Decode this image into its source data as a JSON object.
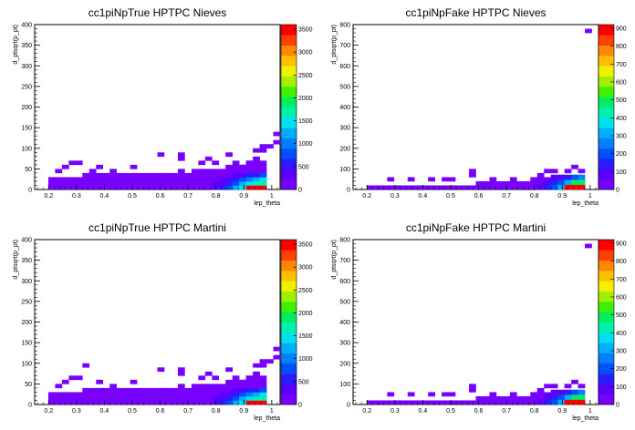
{
  "chart_data": [
    {
      "type": "heatmap",
      "title": "cc1piNpTrue HPTPC Nieves",
      "xlabel": "lep_theta",
      "ylabel": "d_ptsqrt(p_pt)",
      "xlim": [
        0.15,
        1.03
      ],
      "ylim": [
        0,
        400
      ],
      "xticks": [
        "0.2",
        "0.3",
        "0.4",
        "0.5",
        "0.6",
        "0.7",
        "0.8",
        "0.9",
        "1"
      ],
      "xtick_values": [
        0.2,
        0.3,
        0.4,
        0.5,
        0.6,
        0.7,
        0.8,
        0.9,
        1.0
      ],
      "yticks": [
        "0",
        "50",
        "100",
        "150",
        "200",
        "250",
        "300",
        "350",
        "400"
      ],
      "ytick_values": [
        0,
        50,
        100,
        150,
        200,
        250,
        300,
        350,
        400
      ],
      "zticks": [
        "0",
        "500",
        "1000",
        "1500",
        "2000",
        "2500",
        "3000",
        "3500"
      ],
      "zmax": 3600,
      "colorscale": "rainbow",
      "cells": [
        [
          0.5,
          7,
          3500
        ],
        [
          0.5,
          6,
          1600
        ],
        [
          0.5,
          5,
          900
        ],
        [
          0.5,
          4,
          500
        ],
        [
          0.5,
          3,
          200
        ],
        [
          0.5,
          2,
          80
        ],
        [
          0.5,
          1,
          30
        ],
        [
          0.5,
          0,
          10
        ]
      ],
      "envelope": [
        3,
        3,
        3,
        3,
        3,
        4,
        4,
        4,
        4,
        4,
        4,
        4,
        4,
        4,
        4,
        4,
        4,
        4,
        4,
        5,
        4,
        5,
        5,
        5,
        5,
        5,
        6,
        6,
        6,
        7,
        7,
        7
      ],
      "scatter_cells": [
        [
          1,
          4
        ],
        [
          2,
          5
        ],
        [
          3,
          6
        ],
        [
          4,
          6
        ],
        [
          6,
          4
        ],
        [
          7,
          5
        ],
        [
          9,
          4
        ],
        [
          12,
          5
        ],
        [
          16,
          8
        ],
        [
          19,
          7
        ],
        [
          19,
          8
        ],
        [
          22,
          6
        ],
        [
          23,
          7
        ],
        [
          24,
          6
        ],
        [
          26,
          8
        ],
        [
          27,
          6
        ],
        [
          28,
          5
        ],
        [
          29,
          6
        ],
        [
          30,
          7
        ],
        [
          30,
          9
        ],
        [
          31,
          9
        ],
        [
          31,
          10
        ],
        [
          32,
          10
        ],
        [
          33,
          11
        ],
        [
          33,
          13
        ],
        [
          34,
          13
        ],
        [
          34,
          14
        ],
        [
          35,
          18
        ],
        [
          35,
          21
        ]
      ]
    },
    {
      "type": "heatmap",
      "title": "cc1piNpFake HPTPC Nieves",
      "xlabel": "lep_theta",
      "ylabel": "d_ptsqrt(p_pt)",
      "xlim": [
        0.15,
        1.03
      ],
      "ylim": [
        0,
        800
      ],
      "xticks": [
        "0.2",
        "0.3",
        "0.4",
        "0.5",
        "0.6",
        "0.7",
        "0.8",
        "0.9",
        "1"
      ],
      "xtick_values": [
        0.2,
        0.3,
        0.4,
        0.5,
        0.6,
        0.7,
        0.8,
        0.9,
        1.0
      ],
      "yticks": [
        "0",
        "100",
        "200",
        "300",
        "400",
        "500",
        "600",
        "700",
        "800"
      ],
      "ytick_values": [
        0,
        100,
        200,
        300,
        400,
        500,
        600,
        700,
        800
      ],
      "zticks": [
        "0",
        "100",
        "200",
        "300",
        "400",
        "500",
        "600",
        "700",
        "800",
        "900"
      ],
      "zmax": 920,
      "colorscale": "rainbow",
      "cells": [],
      "envelope": [
        1,
        1,
        1,
        1,
        1,
        1,
        1,
        1,
        1,
        1,
        1,
        1,
        1,
        1,
        1,
        1,
        2,
        2,
        2,
        2,
        2,
        2,
        2,
        2,
        3,
        3,
        3,
        3,
        3,
        3,
        3,
        2
      ],
      "scatter_cells": [
        [
          3,
          2
        ],
        [
          6,
          2
        ],
        [
          9,
          2
        ],
        [
          11,
          2
        ],
        [
          12,
          2
        ],
        [
          15,
          3
        ],
        [
          15,
          4
        ],
        [
          18,
          2
        ],
        [
          21,
          2
        ],
        [
          25,
          3
        ],
        [
          26,
          4
        ],
        [
          27,
          4
        ],
        [
          29,
          4
        ],
        [
          30,
          5
        ],
        [
          31,
          4
        ],
        [
          32,
          38
        ]
      ]
    },
    {
      "type": "heatmap",
      "title": "cc1piNpTrue HPTPC Martini",
      "xlabel": "lep_theta",
      "ylabel": "d_ptsqrt(p_pt)",
      "xlim": [
        0.15,
        1.03
      ],
      "ylim": [
        0,
        400
      ],
      "xticks": [
        "0.2",
        "0.3",
        "0.4",
        "0.5",
        "0.6",
        "0.7",
        "0.8",
        "0.9",
        "1"
      ],
      "xtick_values": [
        0.2,
        0.3,
        0.4,
        0.5,
        0.6,
        0.7,
        0.8,
        0.9,
        1.0
      ],
      "yticks": [
        "0",
        "50",
        "100",
        "150",
        "200",
        "250",
        "300",
        "350",
        "400"
      ],
      "ytick_values": [
        0,
        50,
        100,
        150,
        200,
        250,
        300,
        350,
        400
      ],
      "zticks": [
        "0",
        "500",
        "1000",
        "1500",
        "2000",
        "2500",
        "3000",
        "3500"
      ],
      "zmax": 3600,
      "colorscale": "rainbow",
      "cells": [],
      "envelope": [
        3,
        3,
        3,
        3,
        3,
        4,
        4,
        4,
        4,
        4,
        4,
        4,
        4,
        4,
        4,
        4,
        4,
        4,
        4,
        5,
        4,
        5,
        5,
        5,
        5,
        5,
        6,
        6,
        6,
        7,
        7,
        7
      ],
      "scatter_cells": [
        [
          1,
          4
        ],
        [
          2,
          5
        ],
        [
          3,
          6
        ],
        [
          4,
          6
        ],
        [
          5,
          9
        ],
        [
          7,
          5
        ],
        [
          9,
          4
        ],
        [
          12,
          5
        ],
        [
          16,
          8
        ],
        [
          19,
          7
        ],
        [
          19,
          8
        ],
        [
          22,
          6
        ],
        [
          23,
          7
        ],
        [
          24,
          6
        ],
        [
          26,
          8
        ],
        [
          27,
          6
        ],
        [
          28,
          5
        ],
        [
          29,
          6
        ],
        [
          30,
          7
        ],
        [
          30,
          9
        ],
        [
          31,
          9
        ],
        [
          31,
          10
        ],
        [
          32,
          10
        ],
        [
          33,
          11
        ],
        [
          33,
          13
        ],
        [
          34,
          13
        ],
        [
          34,
          14
        ],
        [
          35,
          18
        ],
        [
          35,
          21
        ]
      ]
    },
    {
      "type": "heatmap",
      "title": "cc1piNpFake HPTPC Martini",
      "xlabel": "lep_theta",
      "ylabel": "d_ptsqrt(p_pt)",
      "xlim": [
        0.15,
        1.03
      ],
      "ylim": [
        0,
        800
      ],
      "xticks": [
        "0.2",
        "0.3",
        "0.4",
        "0.5",
        "0.6",
        "0.7",
        "0.8",
        "0.9",
        "1"
      ],
      "xtick_values": [
        0.2,
        0.3,
        0.4,
        0.5,
        0.6,
        0.7,
        0.8,
        0.9,
        1.0
      ],
      "yticks": [
        "0",
        "100",
        "200",
        "300",
        "400",
        "500",
        "600",
        "700",
        "800"
      ],
      "ytick_values": [
        0,
        100,
        200,
        300,
        400,
        500,
        600,
        700,
        800
      ],
      "zticks": [
        "0",
        "100",
        "200",
        "300",
        "400",
        "500",
        "600",
        "700",
        "800",
        "900"
      ],
      "zmax": 920,
      "colorscale": "rainbow",
      "cells": [],
      "envelope": [
        1,
        1,
        1,
        1,
        1,
        1,
        1,
        1,
        1,
        1,
        1,
        1,
        1,
        1,
        1,
        1,
        2,
        2,
        2,
        2,
        2,
        2,
        2,
        2,
        3,
        3,
        3,
        3,
        3,
        3,
        3,
        2
      ],
      "scatter_cells": [
        [
          3,
          2
        ],
        [
          6,
          2
        ],
        [
          9,
          2
        ],
        [
          11,
          2
        ],
        [
          12,
          2
        ],
        [
          15,
          3
        ],
        [
          15,
          4
        ],
        [
          18,
          2
        ],
        [
          21,
          2
        ],
        [
          25,
          3
        ],
        [
          26,
          4
        ],
        [
          27,
          4
        ],
        [
          29,
          4
        ],
        [
          30,
          5
        ],
        [
          31,
          4
        ],
        [
          32,
          38
        ]
      ]
    }
  ]
}
